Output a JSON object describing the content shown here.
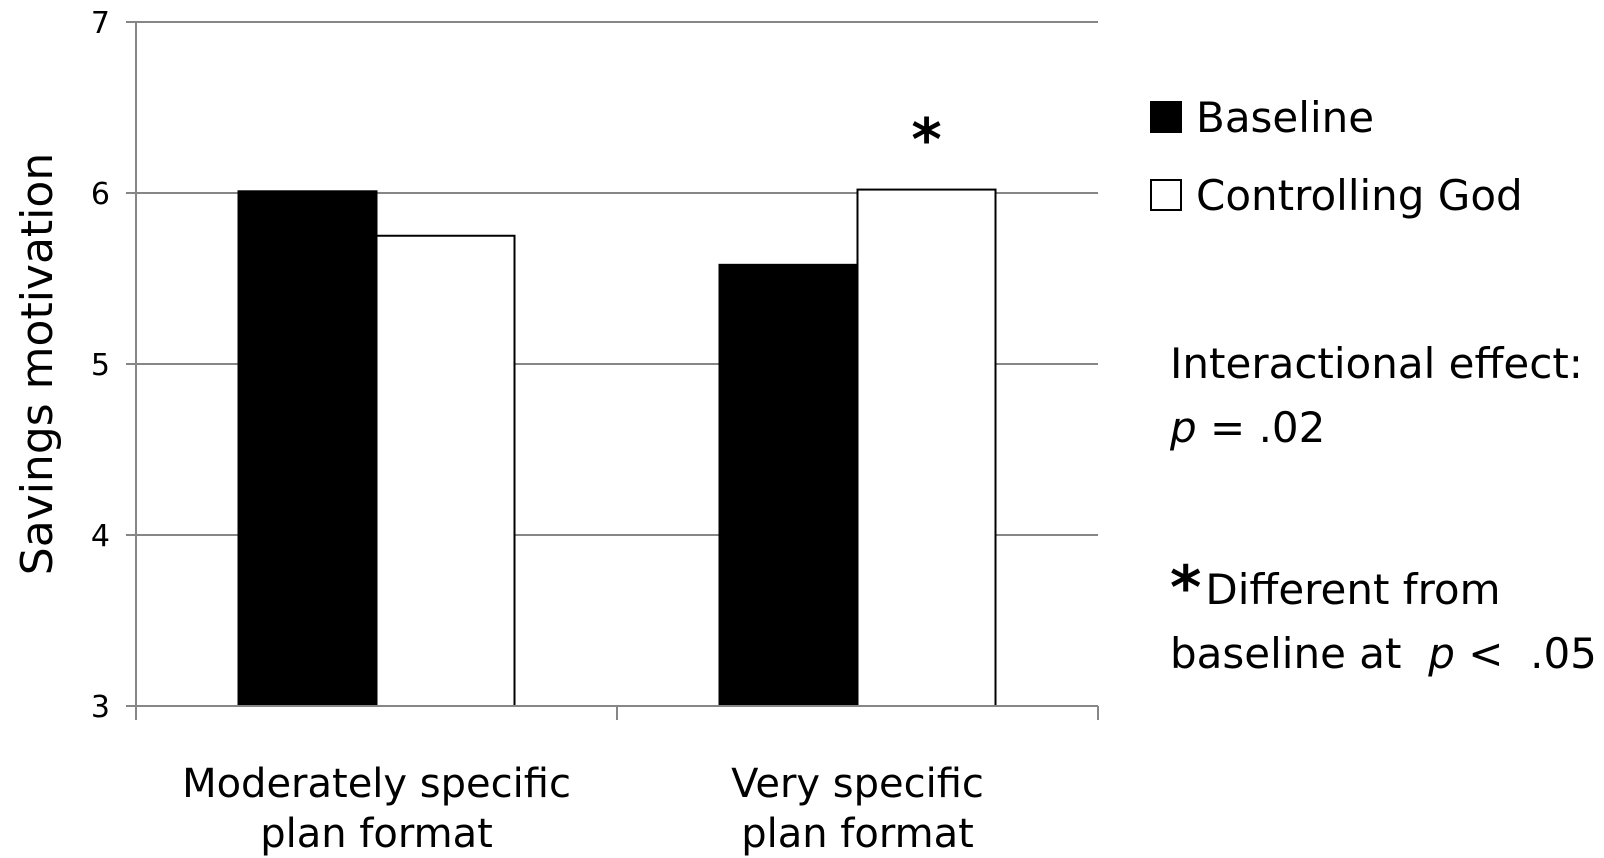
{
  "chart_data": {
    "type": "bar",
    "categories": [
      [
        "Moderately specific",
        "plan format"
      ],
      [
        "Very specific",
        "plan format"
      ]
    ],
    "series": [
      {
        "name": "Baseline",
        "values": [
          6.01,
          5.58
        ],
        "color": "#000000"
      },
      {
        "name": "Controlling God",
        "values": [
          5.75,
          6.02
        ],
        "color": "#ffffff"
      }
    ],
    "ylabel": "Savings motivation",
    "ylim": [
      3,
      7
    ],
    "yticks": [
      3,
      4,
      5,
      6,
      7
    ],
    "grid": true,
    "legend_position": "right",
    "significance_markers": [
      {
        "category_index": 1,
        "series_index": 1,
        "text": "*"
      }
    ]
  },
  "legend": {
    "items": [
      {
        "label": "Baseline",
        "color": "#000000"
      },
      {
        "label": "Controlling God",
        "color": "#ffffff"
      }
    ]
  },
  "notes": {
    "interaction_line1": "Interactional effect:",
    "interaction_p": "p",
    "interaction_value": " = .02",
    "sig_star": "*",
    "sig_line1": "Different from",
    "sig_line2a": "baseline at  ",
    "sig_p": "p",
    "sig_line2b": " <  .05"
  }
}
